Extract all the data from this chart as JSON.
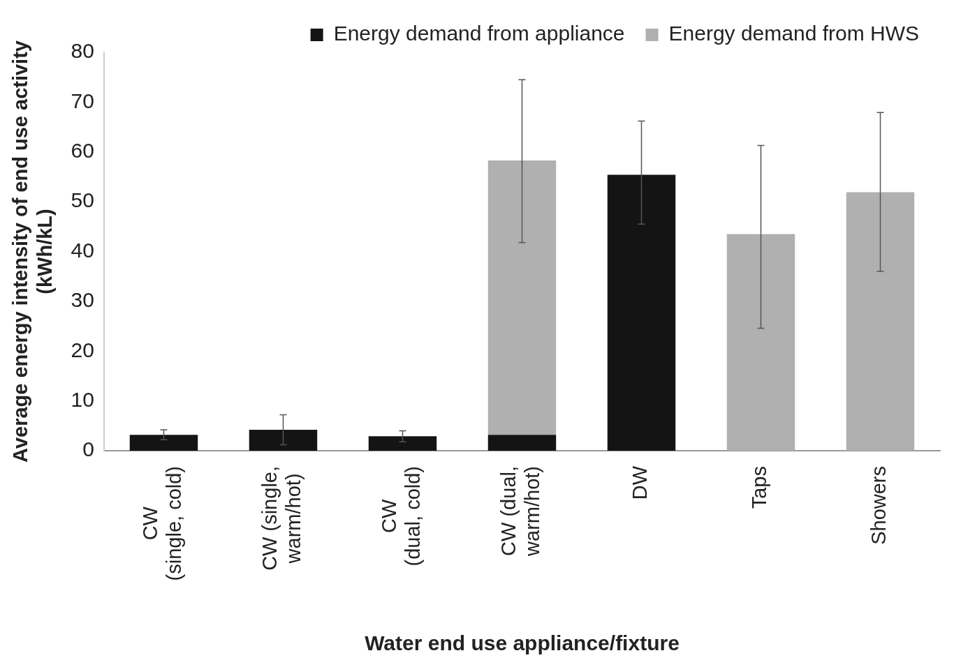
{
  "chart_data": {
    "type": "bar",
    "stacked": true,
    "xlabel": "Water end use appliance/fixture",
    "ylabel": "Average energy intensity of end use activity\n(kWh/kL)",
    "categories": [
      "CW\n(single, cold)",
      "CW (single,\nwarm/hot)",
      "CW\n(dual, cold)",
      "CW (dual,\nwarm/hot)",
      "DW",
      "Taps",
      "Showers"
    ],
    "series": [
      {
        "name": "Energy demand from appliance",
        "color": "#141414",
        "values": [
          3.2,
          4.2,
          2.9,
          3.2,
          55.4,
          null,
          null
        ],
        "errors": [
          1.0,
          3.0,
          1.1,
          null,
          [
            45.5,
            66.2
          ],
          null,
          null
        ]
      },
      {
        "name": "Energy demand from HWS",
        "color": "#b0b0b0",
        "values": [
          null,
          null,
          null,
          55.1,
          null,
          43.5,
          51.9
        ],
        "errors": [
          null,
          null,
          null,
          [
            41.8,
            74.5
          ],
          null,
          [
            24.6,
            61.3
          ],
          [
            36.0,
            67.9
          ]
        ]
      }
    ],
    "ylim": [
      0,
      80
    ],
    "yticks": [
      0,
      10,
      20,
      30,
      40,
      50,
      60,
      70,
      80
    ],
    "grid": false,
    "legend": "top right"
  }
}
